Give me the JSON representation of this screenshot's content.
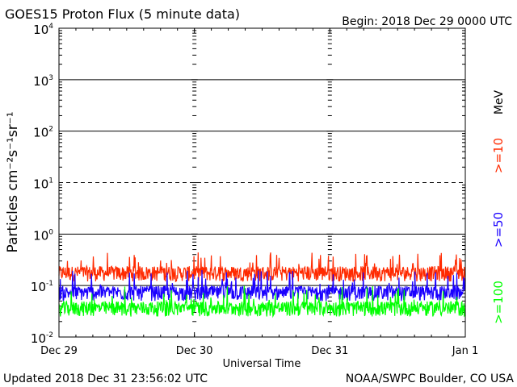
{
  "header": {
    "title": "GOES15 Proton Flux (5 minute data)",
    "begin": "Begin: 2018 Dec 29 0000 UTC"
  },
  "footer": {
    "updated": "Updated 2018 Dec 31 23:56:02 UTC",
    "credit": "NOAA/SWPC Boulder, CO USA"
  },
  "colors": {
    "ge10": "#ff2a00",
    "ge50": "#1a00ff",
    "ge100": "#00ff00",
    "frame": "#000000"
  },
  "chart_data": {
    "type": "line",
    "title": "GOES15 Proton Flux (5 minute data)",
    "xlabel": "Universal Time",
    "ylabel": "Particles cm⁻²s⁻¹sr⁻¹",
    "yscale": "log",
    "ylim_exponents": [
      -2,
      4
    ],
    "ytick_labels": [
      {
        "base": "10",
        "exp": "4"
      },
      {
        "base": "10",
        "exp": "3"
      },
      {
        "base": "10",
        "exp": "2"
      },
      {
        "base": "10",
        "exp": "1"
      },
      {
        "base": "10",
        "exp": "0"
      },
      {
        "base": "10",
        "exp": "-1"
      },
      {
        "base": "10",
        "exp": "-2"
      }
    ],
    "xticks": [
      "Dec 29",
      "Dec 30",
      "Dec 31",
      "Jan 1"
    ],
    "reference_lines": [
      {
        "value": 1000,
        "style": "solid"
      },
      {
        "value": 100,
        "style": "solid"
      },
      {
        "value": 10,
        "style": "dashed"
      },
      {
        "value": 1,
        "style": "solid"
      },
      {
        "value": 0.1,
        "style": "solid"
      }
    ],
    "legend": {
      "unit": "MeV",
      "entries": [
        ">=10",
        ">=50",
        ">=100"
      ],
      "placement": "right"
    },
    "series": [
      {
        "name": ">=10",
        "color": "#ff2a00",
        "baseline": 0.17,
        "low": 0.12,
        "high": 0.45
      },
      {
        "name": ">=50",
        "color": "#1a00ff",
        "baseline": 0.07,
        "low": 0.05,
        "high": 0.2
      },
      {
        "name": ">=100",
        "color": "#00ff00",
        "baseline": 0.035,
        "low": 0.025,
        "high": 0.1
      }
    ]
  }
}
